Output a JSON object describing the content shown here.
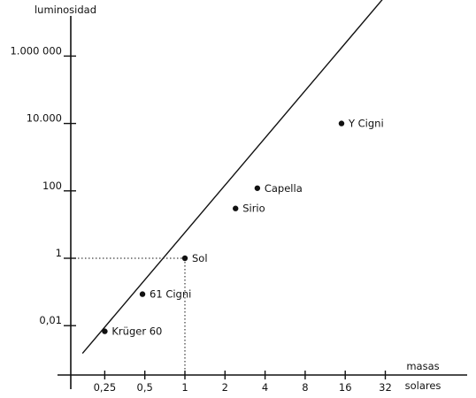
{
  "chart_data": {
    "type": "line",
    "title": "",
    "xlabel_line1": "masas",
    "xlabel_line2": "solares",
    "ylabel": "luminosidad",
    "x_scale": "log2",
    "y_scale": "log10",
    "xlim": [
      0.17,
      50
    ],
    "ylim": [
      0.0015,
      500000000
    ],
    "x_ticks": [
      {
        "value": 0.25,
        "label": "0,25"
      },
      {
        "value": 0.5,
        "label": "0,5"
      },
      {
        "value": 1,
        "label": "1"
      },
      {
        "value": 2,
        "label": "2"
      },
      {
        "value": 4,
        "label": "4"
      },
      {
        "value": 8,
        "label": "8"
      },
      {
        "value": 16,
        "label": "16"
      },
      {
        "value": 32,
        "label": "32"
      }
    ],
    "y_ticks": [
      {
        "value": 0.01,
        "label": "0,01"
      },
      {
        "value": 1,
        "label": "1"
      },
      {
        "value": 100,
        "label": "100"
      },
      {
        "value": 10000,
        "label": "10.000"
      },
      {
        "value": 1000000,
        "label": "1.000 000"
      }
    ],
    "line": {
      "x": [
        0.17,
        48
      ],
      "y": [
        0.0015,
        400000000
      ]
    },
    "points": [
      {
        "x": 0.25,
        "y": 0.0068,
        "label": "Krüger 60"
      },
      {
        "x": 0.48,
        "y": 0.086,
        "label": "61 Cigni"
      },
      {
        "x": 1,
        "y": 1,
        "label": "Sol"
      },
      {
        "x": 2.4,
        "y": 30,
        "label": "Sirio"
      },
      {
        "x": 3.5,
        "y": 120,
        "label": "Capella"
      },
      {
        "x": 15,
        "y": 10000,
        "label": "Y Cigni"
      }
    ],
    "reference_point": {
      "x": 1,
      "y": 1
    },
    "grid": false,
    "legend": "none"
  }
}
